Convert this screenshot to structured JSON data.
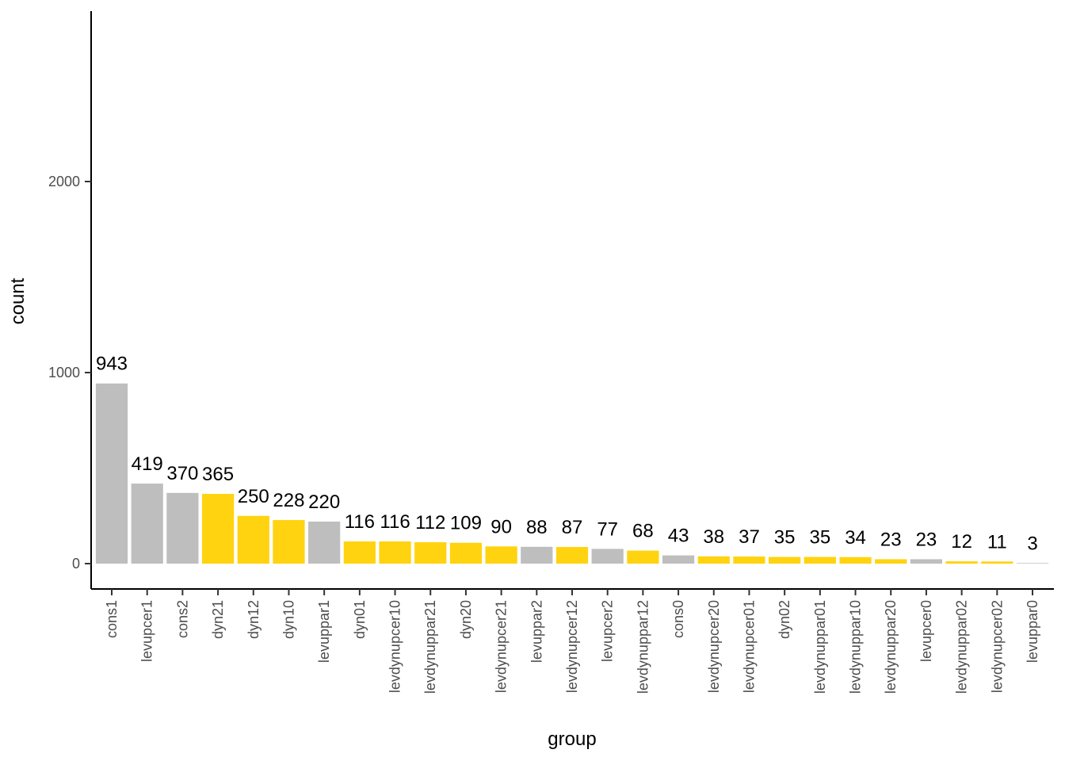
{
  "chart_data": {
    "type": "bar",
    "title": "",
    "xlabel": "group",
    "ylabel": "count",
    "ylim": [
      -130,
      2810
    ],
    "yticks": [
      0,
      1000,
      2000
    ],
    "grid": false,
    "legend": "none",
    "colors": {
      "gray": "#bebebe",
      "yellow": "#ffd30f",
      "axis": "#000000"
    },
    "categories": [
      "cons1",
      "levupcer1",
      "cons2",
      "dyn21",
      "dyn12",
      "dyn10",
      "levuppar1",
      "dyn01",
      "levdynupcer10",
      "levdynuppar21",
      "dyn20",
      "levdynupcer21",
      "levuppar2",
      "levdynupcer12",
      "levupcer2",
      "levdynuppar12",
      "cons0",
      "levdynupcer20",
      "levdynupcer01",
      "dyn02",
      "levdynuppar01",
      "levdynuppar10",
      "levdynuppar20",
      "levupcer0",
      "levdynuppar02",
      "levdynupcer02",
      "levuppar0"
    ],
    "values": [
      943,
      419,
      370,
      365,
      250,
      228,
      220,
      116,
      116,
      112,
      109,
      90,
      88,
      87,
      77,
      68,
      43,
      38,
      37,
      35,
      35,
      34,
      23,
      23,
      12,
      11,
      3
    ],
    "bar_colors": [
      "gray",
      "gray",
      "gray",
      "yellow",
      "yellow",
      "yellow",
      "gray",
      "yellow",
      "yellow",
      "yellow",
      "yellow",
      "yellow",
      "gray",
      "yellow",
      "gray",
      "yellow",
      "gray",
      "yellow",
      "yellow",
      "yellow",
      "yellow",
      "yellow",
      "yellow",
      "gray",
      "yellow",
      "yellow",
      "gray"
    ]
  }
}
